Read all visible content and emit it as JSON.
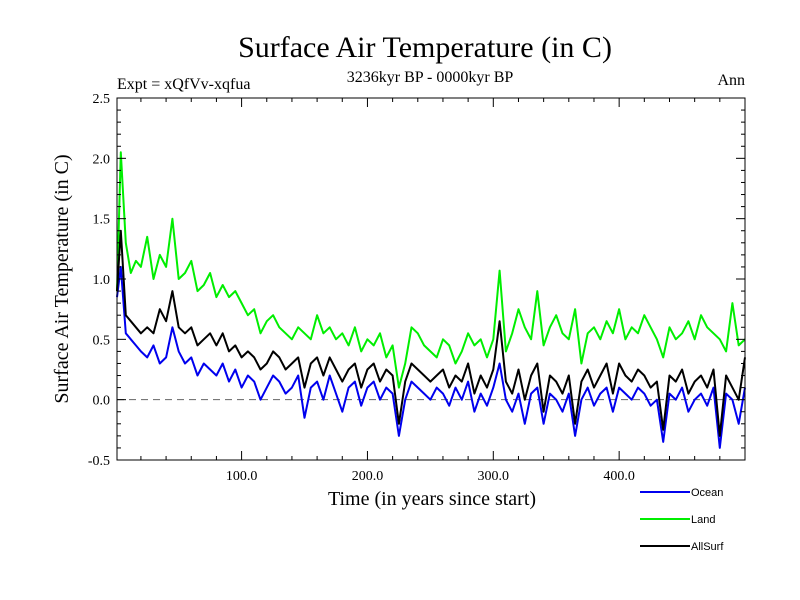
{
  "chart_data": {
    "type": "line",
    "title": "Surface Air Temperature (in C)",
    "subtitle_left": "Expt = xQfVv-xqfua",
    "subtitle_center": "3236kyr BP - 0000kyr BP",
    "subtitle_right": "Ann",
    "xlabel": "Time (in years since start)",
    "ylabel": "Surface Air Temperature (in C)",
    "xlim": [
      1,
      500
    ],
    "ylim": [
      -0.5,
      2.5
    ],
    "xticks": [
      100,
      200,
      300,
      400
    ],
    "xtick_labels": [
      "100.0",
      "200.0",
      "300.0",
      "400.0"
    ],
    "yticks": [
      -0.5,
      0.0,
      0.5,
      1.0,
      1.5,
      2.0,
      2.5
    ],
    "ytick_labels": [
      "-0.5",
      "0.0",
      "0.5",
      "1.0",
      "1.5",
      "2.0",
      "2.5"
    ],
    "reference_line": 0.0,
    "colors": {
      "Land": "#00ee00",
      "Ocean": "#0000ee",
      "AllSurf": "#000000",
      "reference": "#666666"
    },
    "series": [
      {
        "name": "Land",
        "x": [
          1,
          4,
          8,
          12,
          16,
          20,
          25,
          30,
          35,
          40,
          45,
          50,
          55,
          60,
          65,
          70,
          75,
          80,
          85,
          90,
          95,
          100,
          105,
          110,
          115,
          120,
          125,
          130,
          135,
          140,
          145,
          150,
          155,
          160,
          165,
          170,
          175,
          180,
          185,
          190,
          195,
          200,
          205,
          210,
          215,
          220,
          225,
          230,
          235,
          240,
          245,
          250,
          255,
          260,
          265,
          270,
          275,
          280,
          285,
          290,
          295,
          300,
          305,
          310,
          315,
          320,
          325,
          330,
          335,
          340,
          345,
          350,
          355,
          360,
          365,
          370,
          375,
          380,
          385,
          390,
          395,
          400,
          405,
          410,
          415,
          420,
          425,
          430,
          435,
          440,
          445,
          450,
          455,
          460,
          465,
          470,
          475,
          480,
          485,
          490,
          495,
          500
        ],
        "values": [
          0.9,
          2.05,
          1.3,
          1.05,
          1.15,
          1.1,
          1.35,
          1.0,
          1.2,
          1.1,
          1.5,
          1.0,
          1.05,
          1.15,
          0.9,
          0.95,
          1.05,
          0.85,
          0.95,
          0.85,
          0.9,
          0.8,
          0.7,
          0.75,
          0.55,
          0.65,
          0.7,
          0.6,
          0.55,
          0.5,
          0.6,
          0.55,
          0.5,
          0.7,
          0.55,
          0.6,
          0.5,
          0.55,
          0.45,
          0.6,
          0.4,
          0.5,
          0.45,
          0.55,
          0.35,
          0.45,
          0.1,
          0.3,
          0.6,
          0.55,
          0.45,
          0.4,
          0.35,
          0.5,
          0.45,
          0.3,
          0.4,
          0.55,
          0.45,
          0.5,
          0.35,
          0.5,
          1.07,
          0.4,
          0.55,
          0.75,
          0.6,
          0.5,
          0.9,
          0.45,
          0.6,
          0.7,
          0.55,
          0.5,
          0.75,
          0.3,
          0.55,
          0.6,
          0.5,
          0.65,
          0.55,
          0.75,
          0.5,
          0.6,
          0.55,
          0.7,
          0.6,
          0.5,
          0.35,
          0.6,
          0.5,
          0.55,
          0.65,
          0.5,
          0.7,
          0.6,
          0.55,
          0.5,
          0.4,
          0.8,
          0.45,
          0.5
        ]
      },
      {
        "name": "Ocean",
        "x": [
          1,
          4,
          8,
          12,
          16,
          20,
          25,
          30,
          35,
          40,
          45,
          50,
          55,
          60,
          65,
          70,
          75,
          80,
          85,
          90,
          95,
          100,
          105,
          110,
          115,
          120,
          125,
          130,
          135,
          140,
          145,
          150,
          155,
          160,
          165,
          170,
          175,
          180,
          185,
          190,
          195,
          200,
          205,
          210,
          215,
          220,
          225,
          230,
          235,
          240,
          245,
          250,
          255,
          260,
          265,
          270,
          275,
          280,
          285,
          290,
          295,
          300,
          305,
          310,
          315,
          320,
          325,
          330,
          335,
          340,
          345,
          350,
          355,
          360,
          365,
          370,
          375,
          380,
          385,
          390,
          395,
          400,
          405,
          410,
          415,
          420,
          425,
          430,
          435,
          440,
          445,
          450,
          455,
          460,
          465,
          470,
          475,
          480,
          485,
          490,
          495,
          500
        ],
        "values": [
          0.85,
          1.1,
          0.55,
          0.5,
          0.45,
          0.4,
          0.35,
          0.45,
          0.3,
          0.35,
          0.6,
          0.4,
          0.3,
          0.35,
          0.2,
          0.3,
          0.25,
          0.2,
          0.3,
          0.15,
          0.25,
          0.1,
          0.2,
          0.15,
          0.0,
          0.1,
          0.2,
          0.15,
          0.05,
          0.1,
          0.2,
          -0.15,
          0.1,
          0.15,
          0.0,
          0.2,
          0.05,
          -0.1,
          0.1,
          0.15,
          -0.05,
          0.1,
          0.15,
          0.0,
          0.1,
          0.05,
          -0.3,
          0.0,
          0.15,
          0.1,
          0.05,
          0.0,
          0.1,
          0.05,
          -0.05,
          0.1,
          0.0,
          0.15,
          -0.1,
          0.05,
          -0.05,
          0.1,
          0.3,
          0.0,
          -0.1,
          0.05,
          -0.2,
          0.05,
          0.1,
          -0.2,
          0.05,
          0.0,
          -0.1,
          0.05,
          -0.3,
          0.0,
          0.1,
          -0.05,
          0.05,
          0.1,
          -0.1,
          0.1,
          0.05,
          0.0,
          0.1,
          0.05,
          -0.05,
          0.0,
          -0.35,
          0.05,
          0.0,
          0.1,
          -0.1,
          0.0,
          0.05,
          -0.05,
          0.1,
          -0.4,
          0.05,
          0.0,
          -0.2,
          0.1
        ]
      },
      {
        "name": "AllSurf",
        "x": [
          1,
          4,
          8,
          12,
          16,
          20,
          25,
          30,
          35,
          40,
          45,
          50,
          55,
          60,
          65,
          70,
          75,
          80,
          85,
          90,
          95,
          100,
          105,
          110,
          115,
          120,
          125,
          130,
          135,
          140,
          145,
          150,
          155,
          160,
          165,
          170,
          175,
          180,
          185,
          190,
          195,
          200,
          205,
          210,
          215,
          220,
          225,
          230,
          235,
          240,
          245,
          250,
          255,
          260,
          265,
          270,
          275,
          280,
          285,
          290,
          295,
          300,
          305,
          310,
          315,
          320,
          325,
          330,
          335,
          340,
          345,
          350,
          355,
          360,
          365,
          370,
          375,
          380,
          385,
          390,
          395,
          400,
          405,
          410,
          415,
          420,
          425,
          430,
          435,
          440,
          445,
          450,
          455,
          460,
          465,
          470,
          475,
          480,
          485,
          490,
          495,
          500
        ],
        "values": [
          0.9,
          1.4,
          0.7,
          0.65,
          0.6,
          0.55,
          0.6,
          0.55,
          0.75,
          0.65,
          0.9,
          0.6,
          0.55,
          0.6,
          0.45,
          0.5,
          0.55,
          0.45,
          0.55,
          0.4,
          0.45,
          0.35,
          0.4,
          0.35,
          0.25,
          0.3,
          0.4,
          0.35,
          0.25,
          0.3,
          0.35,
          0.1,
          0.3,
          0.35,
          0.2,
          0.35,
          0.25,
          0.15,
          0.25,
          0.3,
          0.1,
          0.25,
          0.3,
          0.15,
          0.25,
          0.2,
          -0.2,
          0.15,
          0.3,
          0.25,
          0.2,
          0.15,
          0.2,
          0.25,
          0.1,
          0.2,
          0.15,
          0.3,
          0.05,
          0.2,
          0.1,
          0.25,
          0.65,
          0.15,
          0.05,
          0.25,
          0.0,
          0.2,
          0.3,
          -0.1,
          0.2,
          0.15,
          0.05,
          0.2,
          -0.2,
          0.15,
          0.25,
          0.1,
          0.2,
          0.3,
          0.05,
          0.3,
          0.2,
          0.15,
          0.25,
          0.2,
          0.1,
          0.15,
          -0.25,
          0.2,
          0.15,
          0.25,
          0.05,
          0.15,
          0.2,
          0.1,
          0.25,
          -0.3,
          0.2,
          0.1,
          0.0,
          0.35
        ]
      }
    ],
    "legend": {
      "placement": "bottom-right",
      "entries": [
        "Ocean",
        "Land",
        "AllSurf"
      ]
    }
  }
}
